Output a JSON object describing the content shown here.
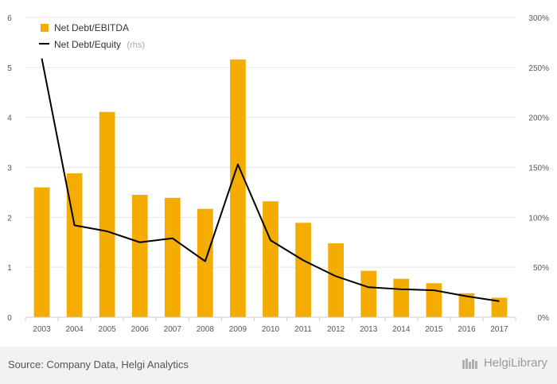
{
  "chart_data": {
    "type": "bar",
    "categories": [
      "2003",
      "2004",
      "2005",
      "2006",
      "2007",
      "2008",
      "2009",
      "2010",
      "2011",
      "2012",
      "2013",
      "2014",
      "2015",
      "2016",
      "2017"
    ],
    "series": [
      {
        "name": "Net Debt/EBITDA",
        "type": "bar",
        "axis": "left",
        "color": "#f5ac00",
        "values": [
          2.6,
          2.88,
          4.11,
          2.45,
          2.39,
          2.17,
          5.16,
          2.32,
          1.89,
          1.48,
          0.93,
          0.77,
          0.68,
          0.48,
          0.39
        ]
      },
      {
        "name": "Net Debt/Equity",
        "name_suffix": "(rhs)",
        "type": "line",
        "axis": "right",
        "color": "#000000",
        "values": [
          259,
          92,
          86,
          75,
          79,
          56,
          153,
          77,
          57,
          41,
          30,
          28,
          27,
          21,
          16
        ]
      }
    ],
    "left_axis": {
      "ylim": [
        0,
        6
      ],
      "ticks": [
        "0",
        "1",
        "2",
        "3",
        "4",
        "5",
        "6"
      ]
    },
    "right_axis": {
      "ylim": [
        0,
        300
      ],
      "ticks": [
        "0%",
        "50%",
        "100%",
        "150%",
        "200%",
        "250%",
        "300%"
      ]
    },
    "grid": true,
    "legend_position": "top-left"
  },
  "footer": {
    "source": "Source: Company Data, Helgi Analytics",
    "brand": "HelgiLibrary"
  }
}
